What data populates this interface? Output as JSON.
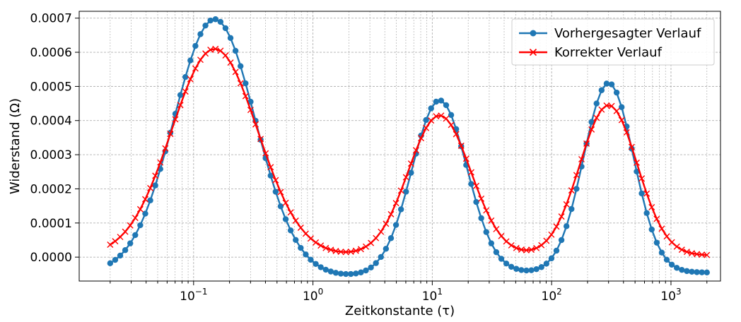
{
  "chart_data": {
    "type": "line",
    "xscale": "log",
    "xlabel": "Zeitkonstante (τ)",
    "ylabel": "Widerstand (Ω)",
    "xlim": [
      0.011,
      2600
    ],
    "ylim": [
      -7e-05,
      0.00072
    ],
    "grid": true,
    "legend_position": "top-right",
    "x_tick_labels": [
      {
        "base": "10",
        "exp": "−1",
        "value": 0.1
      },
      {
        "base": "10",
        "exp": "0",
        "value": 1
      },
      {
        "base": "10",
        "exp": "1",
        "value": 10
      },
      {
        "base": "10",
        "exp": "2",
        "value": 100
      },
      {
        "base": "10",
        "exp": "3",
        "value": 1000
      }
    ],
    "y_ticks": [
      {
        "value": 0.0,
        "label": "0.0000"
      },
      {
        "value": 0.0001,
        "label": "0.0001"
      },
      {
        "value": 0.0002,
        "label": "0.0002"
      },
      {
        "value": 0.0003,
        "label": "0.0003"
      },
      {
        "value": 0.0004,
        "label": "0.0004"
      },
      {
        "value": 0.0005,
        "label": "0.0005"
      },
      {
        "value": 0.0006,
        "label": "0.0006"
      },
      {
        "value": 0.0007,
        "label": "0.0007"
      }
    ],
    "x_range": [
      0.02,
      2000
    ],
    "num_points": 120,
    "series": [
      {
        "name": "Vorhergesagter Verlauf",
        "color": "#1f77b4",
        "marker": "circle",
        "baseline": -4.5e-05,
        "dip": {
          "center_log10": 0.25,
          "width_log10": 0.35,
          "amplitude": 1e-05
        },
        "peaks": [
          {
            "center": 0.15,
            "amplitude": 0.000742,
            "width_log10": 0.34
          },
          {
            "center": 11.5,
            "amplitude": 0.000505,
            "width_log10": 0.23
          },
          {
            "center": 300,
            "amplitude": 0.000555,
            "width_log10": 0.21
          }
        ]
      },
      {
        "name": "Korrekter Verlauf",
        "color": "#ff0000",
        "marker": "x",
        "baseline": 5e-06,
        "peaks": [
          {
            "center": 0.15,
            "amplitude": 0.000605,
            "width_log10": 0.36
          },
          {
            "center": 11.5,
            "amplitude": 0.00041,
            "width_log10": 0.26
          },
          {
            "center": 300,
            "amplitude": 0.00044,
            "width_log10": 0.24
          }
        ]
      }
    ]
  }
}
